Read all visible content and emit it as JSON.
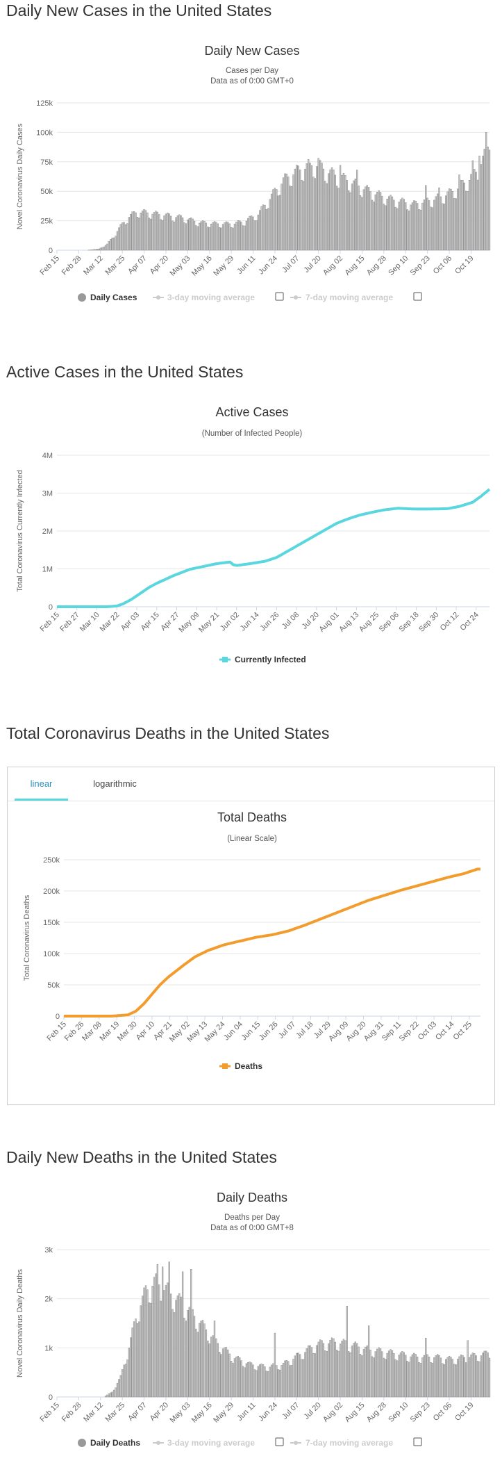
{
  "sections": {
    "daily_cases_heading": "Daily New Cases in the United States",
    "active_cases_heading": "Active Cases in the United States",
    "total_deaths_heading": "Total Coronavirus Deaths in the United States",
    "daily_deaths_heading": "Daily New Deaths in the United States"
  },
  "tabs": {
    "linear": "linear",
    "logarithmic": "logarithmic"
  },
  "colors": {
    "bar": "#c8c8c8",
    "bar_stroke": "#888888",
    "active_line": "#5ad6de",
    "deaths_line": "#f19c2c",
    "tab_accent": "#5ad6de",
    "grid": "#e6e6e6"
  },
  "chart_data": [
    {
      "type": "bar",
      "title": "Daily New Cases",
      "subtitle": "Cases per Day",
      "subtitle2": "Data as of 0:00 GMT+0",
      "ylabel": "Novel Coronavirus Daily Cases",
      "ylim": [
        0,
        125000
      ],
      "yticks": [
        0,
        25000,
        50000,
        75000,
        100000,
        125000
      ],
      "ytick_labels": [
        "0",
        "25k",
        "50k",
        "75k",
        "100k",
        "125k"
      ],
      "x_start": "2020-02-15",
      "xtick_labels": [
        "Feb 15",
        "Feb 28",
        "Mar 12",
        "Mar 25",
        "Apr 07",
        "Apr 20",
        "May 03",
        "May 16",
        "May 29",
        "Jun 11",
        "Jun 24",
        "Jul 07",
        "Jul 20",
        "Aug 02",
        "Aug 15",
        "Aug 28",
        "Sep 10",
        "Sep 23",
        "Oct 06",
        "Oct 19"
      ],
      "xtick_step_days": 13,
      "legend": [
        "Daily Cases",
        "3-day moving average",
        "7-day moving average"
      ],
      "knots": [
        [
          0,
          0
        ],
        [
          18,
          0
        ],
        [
          25,
          1000
        ],
        [
          30,
          5000
        ],
        [
          34,
          12000
        ],
        [
          38,
          20000
        ],
        [
          43,
          28000
        ],
        [
          48,
          32000
        ],
        [
          55,
          31000
        ],
        [
          65,
          29000
        ],
        [
          75,
          27000
        ],
        [
          85,
          23000
        ],
        [
          95,
          22000
        ],
        [
          105,
          22000
        ],
        [
          112,
          24000
        ],
        [
          120,
          30000
        ],
        [
          128,
          45000
        ],
        [
          135,
          58000
        ],
        [
          142,
          65000
        ],
        [
          150,
          70000
        ],
        [
          155,
          71000
        ],
        [
          162,
          65000
        ],
        [
          170,
          60000
        ],
        [
          178,
          55000
        ],
        [
          185,
          50000
        ],
        [
          192,
          46000
        ],
        [
          200,
          42000
        ],
        [
          207,
          40000
        ],
        [
          212,
          38000
        ],
        [
          218,
          40000
        ],
        [
          224,
          42000
        ],
        [
          230,
          45000
        ],
        [
          235,
          48000
        ],
        [
          240,
          53000
        ],
        [
          245,
          58000
        ],
        [
          250,
          65000
        ],
        [
          255,
          78000
        ],
        [
          258,
          90000
        ]
      ],
      "spikes": [
        [
          151,
          74000
        ],
        [
          156,
          78000
        ],
        [
          169,
          72000
        ],
        [
          179,
          68000
        ],
        [
          220,
          55000
        ],
        [
          228,
          53000
        ],
        [
          240,
          64000
        ],
        [
          248,
          76000
        ],
        [
          252,
          80000
        ],
        [
          256,
          100000
        ],
        [
          258,
          85000
        ]
      ]
    },
    {
      "type": "line",
      "title": "Active Cases",
      "subtitle": "(Number of Infected People)",
      "ylabel": "Total Coronavirus Currently Infected",
      "ylim": [
        0,
        4000000
      ],
      "yticks": [
        0,
        1000000,
        2000000,
        3000000,
        4000000
      ],
      "ytick_labels": [
        "0",
        "1M",
        "2M",
        "3M",
        "4M"
      ],
      "x_start": "2020-02-15",
      "xtick_labels": [
        "Feb 15",
        "Feb 27",
        "Mar 10",
        "Mar 22",
        "Apr 03",
        "Apr 15",
        "Apr 27",
        "May 09",
        "May 21",
        "Jun 02",
        "Jun 14",
        "Jun 26",
        "Jul 08",
        "Jul 20",
        "Aug 01",
        "Aug 13",
        "Aug 25",
        "Sep 06",
        "Sep 18",
        "Sep 30",
        "Oct 12",
        "Oct 24"
      ],
      "xtick_step_days": 12,
      "legend": [
        "Currently Infected"
      ],
      "knots": [
        [
          0,
          0
        ],
        [
          30,
          0
        ],
        [
          36,
          20000
        ],
        [
          40,
          80000
        ],
        [
          45,
          200000
        ],
        [
          50,
          350000
        ],
        [
          55,
          500000
        ],
        [
          60,
          620000
        ],
        [
          70,
          820000
        ],
        [
          80,
          990000
        ],
        [
          90,
          1080000
        ],
        [
          95,
          1130000
        ],
        [
          100,
          1160000
        ],
        [
          104,
          1180000
        ],
        [
          106,
          1110000
        ],
        [
          108,
          1090000
        ],
        [
          115,
          1130000
        ],
        [
          125,
          1200000
        ],
        [
          132,
          1300000
        ],
        [
          140,
          1500000
        ],
        [
          150,
          1750000
        ],
        [
          160,
          2000000
        ],
        [
          168,
          2200000
        ],
        [
          175,
          2320000
        ],
        [
          182,
          2420000
        ],
        [
          190,
          2500000
        ],
        [
          197,
          2560000
        ],
        [
          205,
          2600000
        ],
        [
          215,
          2580000
        ],
        [
          225,
          2580000
        ],
        [
          235,
          2590000
        ],
        [
          242,
          2650000
        ],
        [
          250,
          2760000
        ],
        [
          255,
          2920000
        ],
        [
          260,
          3100000
        ]
      ]
    },
    {
      "type": "line",
      "title": "Total Deaths",
      "subtitle": "(Linear Scale)",
      "ylabel": "Total Coronavirus Deaths",
      "ylim": [
        0,
        250000
      ],
      "yticks": [
        0,
        50000,
        100000,
        150000,
        200000,
        250000
      ],
      "ytick_labels": [
        "0",
        "50k",
        "100k",
        "150k",
        "200k",
        "250k"
      ],
      "x_start": "2020-02-15",
      "xtick_labels": [
        "Feb 15",
        "Feb 26",
        "Mar 08",
        "Mar 19",
        "Mar 30",
        "Apr 10",
        "Apr 21",
        "May 02",
        "May 13",
        "May 24",
        "Jun 04",
        "Jun 15",
        "Jun 26",
        "Jul 07",
        "Jul 18",
        "Jul 29",
        "Aug 09",
        "Aug 20",
        "Aug 31",
        "Sep 11",
        "Sep 22",
        "Oct 03",
        "Oct 14",
        "Oct 25"
      ],
      "xtick_step_days": 11,
      "legend": [
        "Deaths"
      ],
      "knots": [
        [
          0,
          0
        ],
        [
          30,
          0
        ],
        [
          40,
          2000
        ],
        [
          45,
          8000
        ],
        [
          50,
          20000
        ],
        [
          55,
          35000
        ],
        [
          60,
          50000
        ],
        [
          65,
          62000
        ],
        [
          70,
          72000
        ],
        [
          75,
          82000
        ],
        [
          82,
          95000
        ],
        [
          90,
          105000
        ],
        [
          100,
          114000
        ],
        [
          110,
          120000
        ],
        [
          120,
          126000
        ],
        [
          130,
          130000
        ],
        [
          140,
          136000
        ],
        [
          150,
          145000
        ],
        [
          160,
          155000
        ],
        [
          170,
          165000
        ],
        [
          180,
          175000
        ],
        [
          190,
          185000
        ],
        [
          200,
          193000
        ],
        [
          210,
          201000
        ],
        [
          220,
          208000
        ],
        [
          230,
          215000
        ],
        [
          240,
          222000
        ],
        [
          250,
          228000
        ],
        [
          258,
          235000
        ]
      ]
    },
    {
      "type": "bar",
      "title": "Daily Deaths",
      "subtitle": "Deaths per Day",
      "subtitle2": "Data as of 0:00 GMT+8",
      "ylabel": "Novel Coronavirus Daily Deaths",
      "ylim": [
        0,
        3000
      ],
      "yticks": [
        0,
        1000,
        2000,
        3000
      ],
      "ytick_labels": [
        "0",
        "1k",
        "2k",
        "3k"
      ],
      "x_start": "2020-02-15",
      "xtick_labels": [
        "Feb 15",
        "Feb 28",
        "Mar 12",
        "Mar 25",
        "Apr 07",
        "Apr 20",
        "May 03",
        "May 16",
        "May 29",
        "Jun 11",
        "Jun 24",
        "Jul 07",
        "Jul 20",
        "Aug 02",
        "Aug 15",
        "Aug 28",
        "Sep 10",
        "Sep 23",
        "Oct 06",
        "Oct 19"
      ],
      "xtick_step_days": 13,
      "legend": [
        "Daily Deaths",
        "3-day moving average",
        "7-day moving average"
      ],
      "knots": [
        [
          0,
          0
        ],
        [
          28,
          0
        ],
        [
          33,
          100
        ],
        [
          38,
          400
        ],
        [
          43,
          1000
        ],
        [
          48,
          1700
        ],
        [
          53,
          2100
        ],
        [
          58,
          2300
        ],
        [
          63,
          2200
        ],
        [
          70,
          2000
        ],
        [
          77,
          1800
        ],
        [
          85,
          1500
        ],
        [
          95,
          1100
        ],
        [
          105,
          800
        ],
        [
          115,
          650
        ],
        [
          125,
          600
        ],
        [
          135,
          650
        ],
        [
          145,
          850
        ],
        [
          155,
          1050
        ],
        [
          165,
          1100
        ],
        [
          175,
          1050
        ],
        [
          185,
          950
        ],
        [
          195,
          900
        ],
        [
          205,
          850
        ],
        [
          215,
          800
        ],
        [
          225,
          800
        ],
        [
          235,
          750
        ],
        [
          245,
          800
        ],
        [
          255,
          850
        ],
        [
          258,
          900
        ]
      ],
      "spikes": [
        [
          60,
          2700
        ],
        [
          63,
          2650
        ],
        [
          67,
          2750
        ],
        [
          75,
          2550
        ],
        [
          80,
          2600
        ],
        [
          94,
          1550
        ],
        [
          130,
          1300
        ],
        [
          173,
          1850
        ],
        [
          186,
          1450
        ],
        [
          220,
          1200
        ],
        [
          245,
          1150
        ]
      ]
    }
  ]
}
